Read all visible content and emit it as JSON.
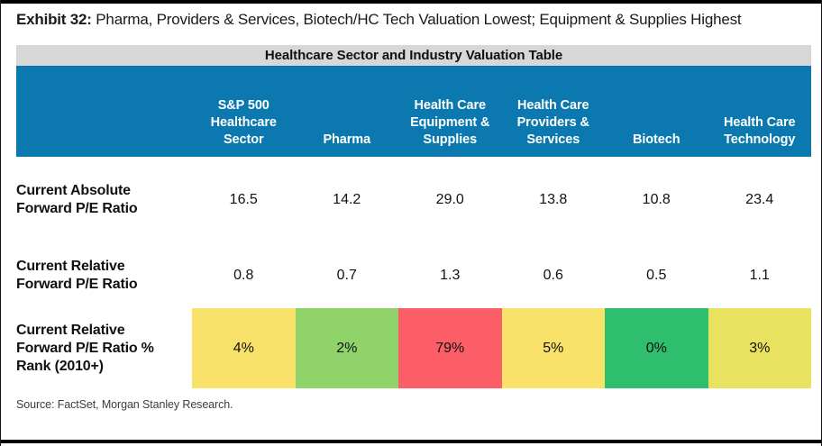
{
  "exhibit": {
    "label": "Exhibit 32:",
    "title": "Pharma, Providers & Services, Biotech/HC Tech Valuation Lowest; Equipment & Supplies Highest"
  },
  "chart_data": {
    "type": "table",
    "title": "Healthcare Sector and Industry Valuation Table",
    "columns": [
      "S&P 500 Healthcare Sector",
      "Pharma",
      "Health Care Equipment & Supplies",
      "Health Care Providers & Services",
      "Biotech",
      "Health Care Technology"
    ],
    "rows": [
      {
        "label": "Current Absolute Forward P/E Ratio",
        "values": [
          "16.5",
          "14.2",
          "29.0",
          "13.8",
          "10.8",
          "23.4"
        ]
      },
      {
        "label": "Current Relative Forward P/E Ratio",
        "values": [
          "0.8",
          "0.7",
          "1.3",
          "0.6",
          "0.5",
          "1.1"
        ]
      },
      {
        "label": "Current Relative Forward P/E Ratio % Rank (2010+)",
        "values": [
          "4%",
          "2%",
          "79%",
          "5%",
          "0%",
          "3%"
        ],
        "cell_colors": [
          "#f8e26a",
          "#90d36b",
          "#fb5e66",
          "#f8e26a",
          "#2fbd6e",
          "#e9e160"
        ]
      }
    ],
    "layout": "heatmap-colored bottom row, green = low percentile, red = high percentile"
  },
  "source": "Source: FactSet, Morgan Stanley Research.",
  "colors": {
    "header_bg": "#0b79b0",
    "header_text": "#ffffff",
    "caption_bg": "#d7d7d7"
  }
}
